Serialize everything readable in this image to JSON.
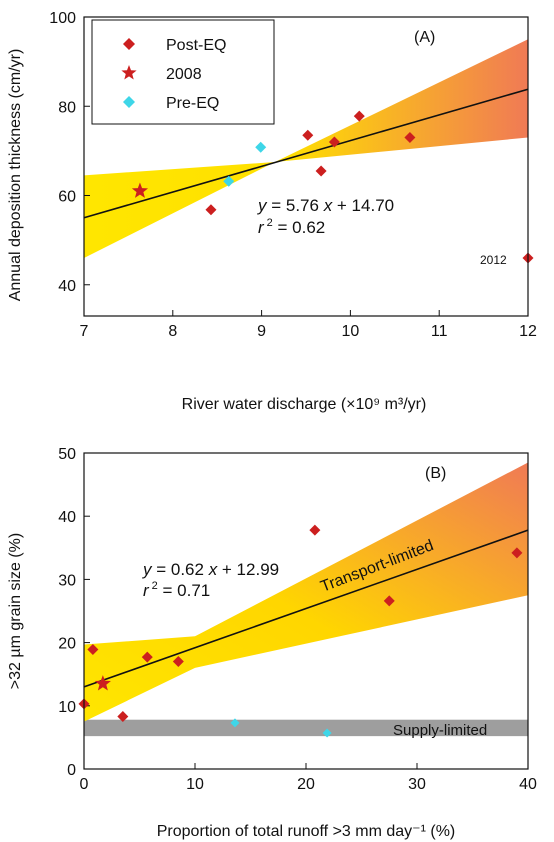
{
  "colors": {
    "post_eq": "#cc1f1f",
    "year_2008": "#cc1f1f",
    "pre_eq": "#3ed6e8",
    "band_light": "#ffe600",
    "band_dark": "#f07a55",
    "supply_band": "#9e9e9e",
    "transport_text": "#d63a1f",
    "supply_text": "#3ed6e8",
    "fit_line": "#111111"
  },
  "chart_data": [
    {
      "type": "scatter",
      "panel_label": "(A)",
      "xlabel": "River water discharge (×10⁹ m³/yr)",
      "ylabel": "Annual deposition thickness (cm/yr)",
      "xlim": [
        7,
        12
      ],
      "ylim": [
        33,
        100
      ],
      "xticks": [
        "7",
        "8",
        "9",
        "10",
        "11",
        "12"
      ],
      "yticks": [
        "40",
        "60",
        "80",
        "100"
      ],
      "legend": {
        "placement": "top-left",
        "entries": [
          "Post-EQ",
          "2008",
          "Pre-EQ"
        ]
      },
      "series": [
        {
          "name": "Post-EQ",
          "marker": "diamond",
          "points": [
            [
              8.43,
              56.8
            ],
            [
              9.52,
              73.5
            ],
            [
              9.67,
              65.5
            ],
            [
              9.82,
              72
            ],
            [
              10.1,
              77.8
            ],
            [
              10.67,
              73
            ],
            [
              12.0,
              46
            ]
          ]
        },
        {
          "name": "2008",
          "marker": "star",
          "points": [
            [
              7.63,
              61
            ]
          ]
        },
        {
          "name": "Pre-EQ",
          "marker": "diamond",
          "points": [
            [
              8.63,
              63.2
            ],
            [
              8.99,
              70.8
            ]
          ]
        }
      ],
      "fit": {
        "slope": 5.76,
        "intercept": 14.7,
        "x_range": [
          7,
          12
        ]
      },
      "confidence_band": {
        "x": [
          7,
          9.15,
          12
        ],
        "lower": [
          46,
          67.5,
          73
        ],
        "upper": [
          64.5,
          67.5,
          95
        ]
      },
      "equation": {
        "y": "y",
        "eq": " = 5.76 ",
        "x": "x",
        "rest": " + 14.70"
      },
      "r2": {
        "r": "r",
        "sup": "2",
        "rest": " = 0.62"
      },
      "annotations": [
        {
          "text": "2012",
          "x": 12.0,
          "y": 46
        }
      ]
    },
    {
      "type": "scatter",
      "panel_label": "(B)",
      "xlabel": "Proportion of total runoff >3 mm day⁻¹ (%)",
      "ylabel": ">32 µm grain size (%)",
      "xlim": [
        0,
        40
      ],
      "ylim": [
        0,
        50
      ],
      "xticks": [
        "0",
        "10",
        "20",
        "30",
        "40"
      ],
      "yticks": [
        "0",
        "10",
        "20",
        "30",
        "40",
        "50"
      ],
      "series": [
        {
          "name": "Post-EQ",
          "marker": "diamond",
          "points": [
            [
              0,
              10.3
            ],
            [
              0.8,
              18.9
            ],
            [
              3.5,
              8.3
            ],
            [
              5.7,
              17.7
            ],
            [
              8.5,
              17
            ],
            [
              20.8,
              37.8
            ],
            [
              27.5,
              26.6
            ],
            [
              39.0,
              34.2
            ]
          ]
        },
        {
          "name": "2008",
          "marker": "star",
          "points": [
            [
              1.7,
              13.5
            ]
          ]
        },
        {
          "name": "Pre-EQ",
          "marker": "diamond",
          "points": [
            [
              13.6,
              7.3
            ],
            [
              21.9,
              5.7
            ]
          ]
        }
      ],
      "fit": {
        "slope": 0.62,
        "intercept": 12.99,
        "x_range": [
          0,
          40
        ]
      },
      "confidence_band": {
        "x": [
          0,
          10,
          40
        ],
        "lower": [
          7.5,
          16,
          27.5
        ],
        "upper": [
          19.7,
          21,
          48.5
        ]
      },
      "supply_band": {
        "y_range": [
          5.2,
          7.8
        ]
      },
      "equation": {
        "y": "y",
        "eq": " = 0.62 ",
        "x": "x",
        "rest": " + 12.99"
      },
      "r2": {
        "r": "r",
        "sup": "2",
        "rest": " = 0.71"
      },
      "labels": {
        "transport": "Transport-limited",
        "supply": "Supply-limited"
      }
    }
  ]
}
